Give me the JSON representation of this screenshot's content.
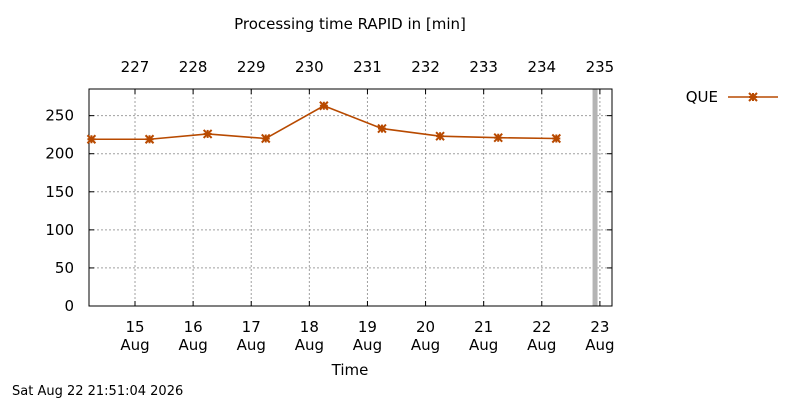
{
  "chart_data": {
    "type": "line",
    "title": "Processing time RAPID in [min]",
    "xlabel": "Time",
    "ylabel": "",
    "ylim": [
      0,
      285
    ],
    "y_ticks": [
      0,
      50,
      100,
      150,
      200,
      250
    ],
    "x_ticks_bottom": [
      {
        "day": "15",
        "month": "Aug",
        "at": "2026-08-15"
      },
      {
        "day": "16",
        "month": "Aug",
        "at": "2026-08-16"
      },
      {
        "day": "17",
        "month": "Aug",
        "at": "2026-08-17"
      },
      {
        "day": "18",
        "month": "Aug",
        "at": "2026-08-18"
      },
      {
        "day": "19",
        "month": "Aug",
        "at": "2026-08-19"
      },
      {
        "day": "20",
        "month": "Aug",
        "at": "2026-08-20"
      },
      {
        "day": "21",
        "month": "Aug",
        "at": "2026-08-21"
      },
      {
        "day": "22",
        "month": "Aug",
        "at": "2026-08-22"
      },
      {
        "day": "23",
        "month": "Aug",
        "at": "2026-08-23"
      }
    ],
    "x_ticks_top": [
      {
        "label": "227",
        "at": "2026-08-15"
      },
      {
        "label": "228",
        "at": "2026-08-16"
      },
      {
        "label": "229",
        "at": "2026-08-17"
      },
      {
        "label": "230",
        "at": "2026-08-18"
      },
      {
        "label": "231",
        "at": "2026-08-19"
      },
      {
        "label": "232",
        "at": "2026-08-20"
      },
      {
        "label": "233",
        "at": "2026-08-21"
      },
      {
        "label": "234",
        "at": "2026-08-22"
      },
      {
        "label": "235",
        "at": "2026-08-23"
      }
    ],
    "x_range": [
      "2026-08-14 05:00",
      "2026-08-23 05:00"
    ],
    "now_marker": "2026-08-22 22:00",
    "grid": true,
    "legend_position": "top-right",
    "series": [
      {
        "name": "QUE",
        "color": "#b84a00",
        "marker": "star",
        "x": [
          "2026-08-14 06:00",
          "2026-08-15 06:00",
          "2026-08-16 06:00",
          "2026-08-17 06:00",
          "2026-08-18 06:00",
          "2026-08-19 06:00",
          "2026-08-20 06:00",
          "2026-08-21 06:00",
          "2026-08-22 06:00"
        ],
        "values": [
          219,
          219,
          226,
          220,
          263,
          233,
          223,
          221,
          220
        ]
      }
    ]
  },
  "footer": {
    "timestamp": "Sat Aug 22 21:51:04 2026"
  },
  "colors": {
    "grid": "#a0a0a0",
    "now_marker": "#b4b4b4"
  }
}
